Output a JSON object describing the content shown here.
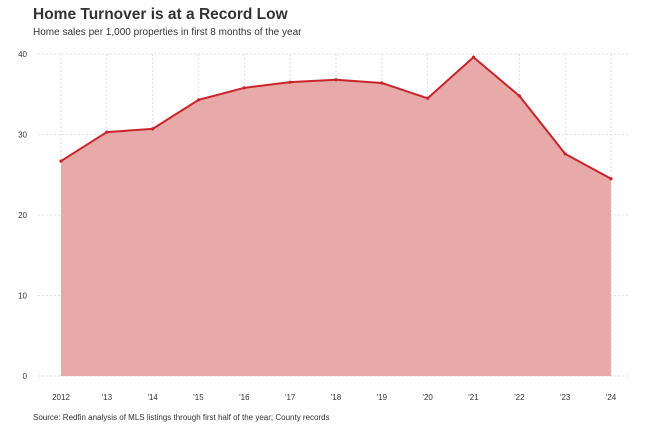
{
  "title": "Home Turnover is at a Record Low",
  "subtitle": "Home sales per 1,000 properties in first 8 months of the year",
  "source": "Source: Redfin analysis of MLS listings through first half of the year; County records",
  "colors": {
    "area_fill": "#e8a9a9",
    "line": "#c8242a",
    "grid": "#d6d6d6",
    "text": "#333333"
  },
  "chart_data": {
    "type": "area",
    "title": "Home Turnover is at a Record Low",
    "subtitle": "Home sales per 1,000 properties in first 8 months of the year",
    "xlabel": "",
    "ylabel": "",
    "categories": [
      "2012",
      "'13",
      "'14",
      "'15",
      "'16",
      "'17",
      "'18",
      "'19",
      "'20",
      "'21",
      "'22",
      "'23",
      "'24"
    ],
    "series": [
      {
        "values": [
          26.7,
          30.3,
          30.7,
          34.3,
          35.8,
          36.5,
          36.8,
          36.4,
          34.5,
          39.6,
          34.8,
          27.6,
          24.5
        ]
      }
    ],
    "ylim": [
      0,
      40
    ],
    "yticks": [
      0,
      10,
      20,
      30,
      40
    ],
    "grid": true,
    "legend": "none"
  }
}
